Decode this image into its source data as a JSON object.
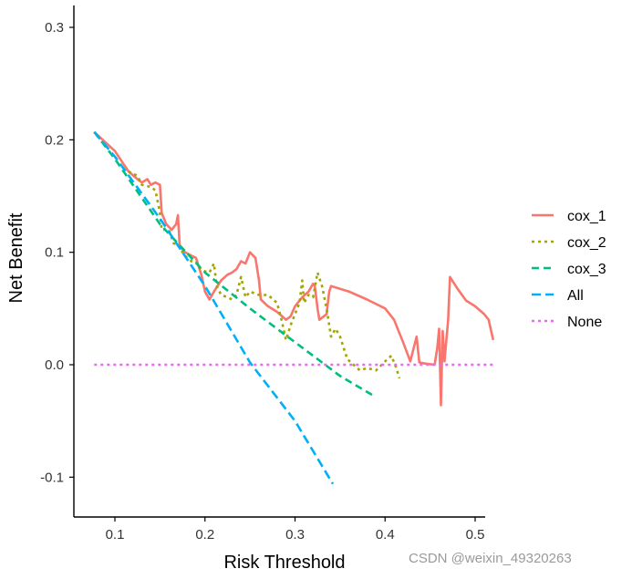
{
  "chart_data": {
    "type": "line",
    "xlabel": "Risk Threshold",
    "ylabel": "Net Benefit",
    "xlim": [
      0.06,
      0.52
    ],
    "ylim": [
      -0.135,
      0.32
    ],
    "x_ticks": [
      0.1,
      0.2,
      0.3,
      0.4,
      0.5
    ],
    "x_tick_labels": [
      "0.1",
      "0.2",
      "0.3",
      "0.4",
      "0.5"
    ],
    "y_ticks": [
      -0.1,
      0.0,
      0.1,
      0.2,
      0.3
    ],
    "y_tick_labels": [
      "-0.1",
      "0.0",
      "0.1",
      "0.2",
      "0.3"
    ],
    "grid": false,
    "legend_position": "right",
    "series": [
      {
        "name": "cox_1",
        "color": "#F8766D",
        "dash": "solid",
        "points": [
          [
            0.077,
            0.207
          ],
          [
            0.1,
            0.19
          ],
          [
            0.115,
            0.172
          ],
          [
            0.125,
            0.165
          ],
          [
            0.13,
            0.162
          ],
          [
            0.136,
            0.165
          ],
          [
            0.14,
            0.16
          ],
          [
            0.145,
            0.162
          ],
          [
            0.15,
            0.16
          ],
          [
            0.152,
            0.135
          ],
          [
            0.157,
            0.125
          ],
          [
            0.163,
            0.12
          ],
          [
            0.168,
            0.125
          ],
          [
            0.17,
            0.133
          ],
          [
            0.172,
            0.105
          ],
          [
            0.178,
            0.1
          ],
          [
            0.185,
            0.097
          ],
          [
            0.19,
            0.095
          ],
          [
            0.196,
            0.08
          ],
          [
            0.2,
            0.065
          ],
          [
            0.205,
            0.058
          ],
          [
            0.21,
            0.065
          ],
          [
            0.218,
            0.075
          ],
          [
            0.225,
            0.08
          ],
          [
            0.23,
            0.082
          ],
          [
            0.235,
            0.085
          ],
          [
            0.24,
            0.092
          ],
          [
            0.245,
            0.09
          ],
          [
            0.25,
            0.1
          ],
          [
            0.256,
            0.095
          ],
          [
            0.26,
            0.075
          ],
          [
            0.262,
            0.058
          ],
          [
            0.27,
            0.052
          ],
          [
            0.28,
            0.047
          ],
          [
            0.29,
            0.04
          ],
          [
            0.295,
            0.043
          ],
          [
            0.3,
            0.052
          ],
          [
            0.308,
            0.06
          ],
          [
            0.315,
            0.065
          ],
          [
            0.32,
            0.072
          ],
          [
            0.322,
            0.07
          ],
          [
            0.325,
            0.05
          ],
          [
            0.327,
            0.04
          ],
          [
            0.335,
            0.045
          ],
          [
            0.338,
            0.065
          ],
          [
            0.34,
            0.07
          ],
          [
            0.36,
            0.065
          ],
          [
            0.38,
            0.058
          ],
          [
            0.4,
            0.05
          ],
          [
            0.41,
            0.04
          ],
          [
            0.42,
            0.02
          ],
          [
            0.428,
            0.003
          ],
          [
            0.435,
            0.025
          ],
          [
            0.438,
            0.002
          ],
          [
            0.445,
            0.001
          ],
          [
            0.455,
            0.0
          ],
          [
            0.458,
            0.015
          ],
          [
            0.46,
            0.032
          ],
          [
            0.462,
            -0.036
          ],
          [
            0.464,
            0.03
          ],
          [
            0.466,
            0.003
          ],
          [
            0.47,
            0.04
          ],
          [
            0.472,
            0.078
          ],
          [
            0.48,
            0.068
          ],
          [
            0.49,
            0.057
          ],
          [
            0.5,
            0.052
          ],
          [
            0.51,
            0.045
          ],
          [
            0.515,
            0.04
          ],
          [
            0.52,
            0.022
          ]
        ]
      },
      {
        "name": "cox_2",
        "color": "#A3A500",
        "dash": "dotted",
        "points": [
          [
            0.115,
            0.172
          ],
          [
            0.125,
            0.168
          ],
          [
            0.13,
            0.16
          ],
          [
            0.14,
            0.158
          ],
          [
            0.145,
            0.155
          ],
          [
            0.15,
            0.135
          ],
          [
            0.152,
            0.12
          ],
          [
            0.16,
            0.12
          ],
          [
            0.165,
            0.108
          ],
          [
            0.17,
            0.107
          ],
          [
            0.175,
            0.1
          ],
          [
            0.18,
            0.095
          ],
          [
            0.185,
            0.092
          ],
          [
            0.19,
            0.092
          ],
          [
            0.195,
            0.085
          ],
          [
            0.2,
            0.083
          ],
          [
            0.205,
            0.082
          ],
          [
            0.21,
            0.09
          ],
          [
            0.213,
            0.07
          ],
          [
            0.218,
            0.062
          ],
          [
            0.225,
            0.06
          ],
          [
            0.23,
            0.058
          ],
          [
            0.235,
            0.062
          ],
          [
            0.24,
            0.078
          ],
          [
            0.245,
            0.06
          ],
          [
            0.25,
            0.065
          ],
          [
            0.26,
            0.062
          ],
          [
            0.27,
            0.062
          ],
          [
            0.28,
            0.055
          ],
          [
            0.285,
            0.04
          ],
          [
            0.29,
            0.022
          ],
          [
            0.295,
            0.035
          ],
          [
            0.3,
            0.045
          ],
          [
            0.305,
            0.055
          ],
          [
            0.308,
            0.075
          ],
          [
            0.31,
            0.055
          ],
          [
            0.315,
            0.062
          ],
          [
            0.32,
            0.06
          ],
          [
            0.325,
            0.082
          ],
          [
            0.33,
            0.07
          ],
          [
            0.335,
            0.05
          ],
          [
            0.34,
            0.025
          ],
          [
            0.345,
            0.032
          ],
          [
            0.35,
            0.025
          ],
          [
            0.358,
            0.005
          ],
          [
            0.365,
            0.0
          ],
          [
            0.372,
            -0.005
          ],
          [
            0.38,
            -0.003
          ],
          [
            0.39,
            -0.005
          ],
          [
            0.4,
            0.003
          ],
          [
            0.407,
            0.008
          ],
          [
            0.412,
            -0.002
          ],
          [
            0.416,
            -0.012
          ]
        ]
      },
      {
        "name": "cox_3",
        "color": "#00BF7D",
        "dash": "dashed",
        "points": [
          [
            0.077,
            0.207
          ],
          [
            0.1,
            0.183
          ],
          [
            0.15,
            0.125
          ],
          [
            0.2,
            0.082
          ],
          [
            0.25,
            0.05
          ],
          [
            0.3,
            0.02
          ],
          [
            0.35,
            -0.01
          ],
          [
            0.386,
            -0.027
          ]
        ]
      },
      {
        "name": "All",
        "color": "#00B0F6",
        "dash": "longdash",
        "points": [
          [
            0.077,
            0.207
          ],
          [
            0.1,
            0.185
          ],
          [
            0.15,
            0.13
          ],
          [
            0.2,
            0.07
          ],
          [
            0.25,
            0.002
          ],
          [
            0.3,
            -0.05
          ],
          [
            0.342,
            -0.106
          ]
        ]
      },
      {
        "name": "None",
        "color": "#E76BF3",
        "dash": "dotted",
        "points": [
          [
            0.077,
            0.0
          ],
          [
            0.52,
            0.0
          ]
        ]
      }
    ]
  },
  "watermark": "CSDN @weixin_49320263"
}
